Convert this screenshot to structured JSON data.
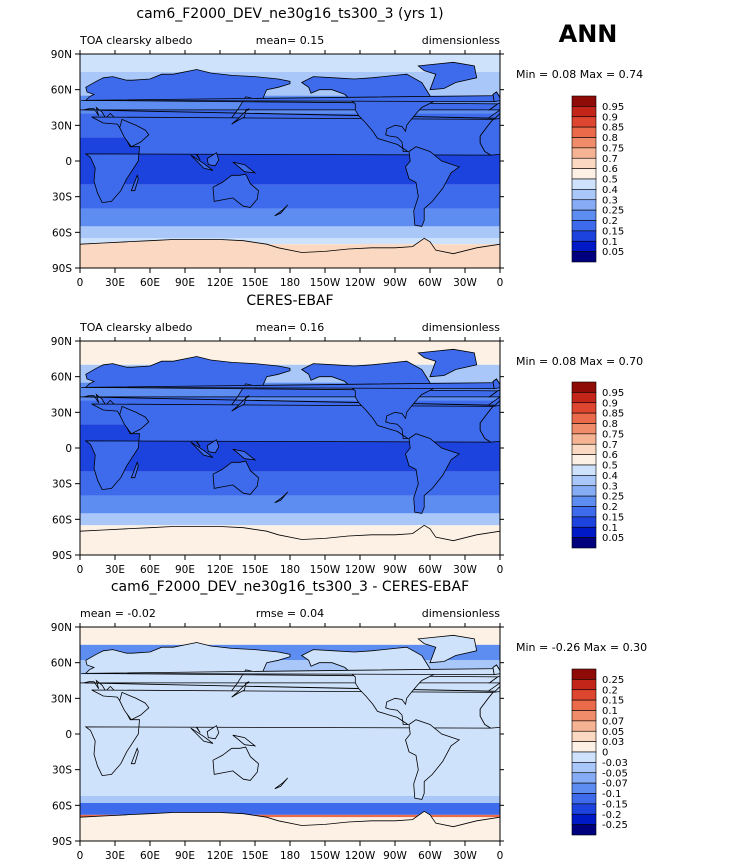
{
  "season": "ANN",
  "palettes": {
    "albedo": [
      "#00007e",
      "#0019c6",
      "#1c43dd",
      "#3d6bec",
      "#5e8df2",
      "#86acf6",
      "#a9c8f9",
      "#cfe2fb",
      "#fdf1e5",
      "#fbd8c1",
      "#f6b393",
      "#f08c6a",
      "#ea6a4a",
      "#de4630",
      "#c42519",
      "#8e0b07"
    ],
    "diff": [
      "#00007e",
      "#0019c6",
      "#1c43dd",
      "#3d6bec",
      "#5e8df2",
      "#86acf6",
      "#a9c8f9",
      "#cfe2fb",
      "#fdf1e5",
      "#fbd8c1",
      "#f6b393",
      "#f08c6a",
      "#ea6a4a",
      "#de4630",
      "#c42519",
      "#8e0b07"
    ]
  },
  "panels": [
    {
      "title": "cam6_F2000_DEV_ne30g16_ts300_3 (yrs 1)",
      "left_label": "TOA clearsky albedo",
      "center_label": "mean=     0.15",
      "right_label": "dimensionless",
      "minmax_label": "Min =    0.08 Max =    0.74",
      "palette": "albedo",
      "levels": [
        "0.05",
        "0.1",
        "0.15",
        "0.2",
        "0.25",
        "0.3",
        "0.4",
        "0.5",
        "0.6",
        "0.7",
        "0.75",
        "0.8",
        "0.85",
        "0.9",
        "0.95"
      ],
      "ocean_zones": [
        {
          "lat": [
            90,
            75
          ],
          "color": 7
        },
        {
          "lat": [
            75,
            55
          ],
          "color": 6
        },
        {
          "lat": [
            55,
            40
          ],
          "color": 4
        },
        {
          "lat": [
            40,
            20
          ],
          "color": 3
        },
        {
          "lat": [
            20,
            -20
          ],
          "color": 2
        },
        {
          "lat": [
            -20,
            -40
          ],
          "color": 3
        },
        {
          "lat": [
            -40,
            -55
          ],
          "color": 4
        },
        {
          "lat": [
            -55,
            -65
          ],
          "color": 6
        },
        {
          "lat": [
            -65,
            -70
          ],
          "color": 7
        },
        {
          "lat": [
            -70,
            -90
          ],
          "color": 9
        }
      ],
      "land_color": 3,
      "ice_color": 9
    },
    {
      "title": "CERES-EBAF",
      "left_label": "TOA clearsky albedo",
      "center_label": "mean=     0.16",
      "right_label": "dimensionless",
      "minmax_label": "Min =    0.08 Max =    0.70",
      "palette": "albedo",
      "levels": [
        "0.05",
        "0.1",
        "0.15",
        "0.2",
        "0.25",
        "0.3",
        "0.4",
        "0.5",
        "0.6",
        "0.7",
        "0.75",
        "0.8",
        "0.85",
        "0.9",
        "0.95"
      ],
      "ocean_zones": [
        {
          "lat": [
            90,
            70
          ],
          "color": 8
        },
        {
          "lat": [
            70,
            55
          ],
          "color": 6
        },
        {
          "lat": [
            55,
            40
          ],
          "color": 4
        },
        {
          "lat": [
            40,
            20
          ],
          "color": 3
        },
        {
          "lat": [
            20,
            -20
          ],
          "color": 2
        },
        {
          "lat": [
            -20,
            -40
          ],
          "color": 3
        },
        {
          "lat": [
            -40,
            -55
          ],
          "color": 4
        },
        {
          "lat": [
            -55,
            -65
          ],
          "color": 6
        },
        {
          "lat": [
            -65,
            -90
          ],
          "color": 8
        }
      ],
      "land_color": 3,
      "ice_color": 8
    },
    {
      "title": "cam6_F2000_DEV_ne30g16_ts300_3 - CERES-EBAF",
      "left_label": "mean =    -0.02",
      "center_label": "rmse =     0.04",
      "right_label": "dimensionless",
      "minmax_label": "Min =   -0.26 Max =    0.30",
      "palette": "diff",
      "levels": [
        "-0.25",
        "-0.2",
        "-0.15",
        "-0.1",
        "-0.07",
        "-0.05",
        "-0.03",
        "0",
        "0.03",
        "0.05",
        "0.07",
        "0.1",
        "0.15",
        "0.2",
        "0.25"
      ],
      "ocean_zones": [
        {
          "lat": [
            90,
            75
          ],
          "color": 8
        },
        {
          "lat": [
            75,
            62
          ],
          "color": 4
        },
        {
          "lat": [
            62,
            50
          ],
          "color": 6
        },
        {
          "lat": [
            50,
            -52
          ],
          "color": 7
        },
        {
          "lat": [
            -52,
            -58
          ],
          "color": 6
        },
        {
          "lat": [
            -58,
            -68
          ],
          "color": 3
        },
        {
          "lat": [
            -68,
            -70
          ],
          "color": 12
        },
        {
          "lat": [
            -70,
            -90
          ],
          "color": 8
        }
      ],
      "land_color": 7,
      "ice_color": 8
    }
  ],
  "x_ticks": [
    "0",
    "30E",
    "60E",
    "90E",
    "120E",
    "150E",
    "180",
    "150W",
    "120W",
    "90W",
    "60W",
    "30W",
    "0"
  ],
  "y_ticks": [
    "90N",
    "60N",
    "30N",
    "0",
    "30S",
    "60S",
    "90S"
  ]
}
